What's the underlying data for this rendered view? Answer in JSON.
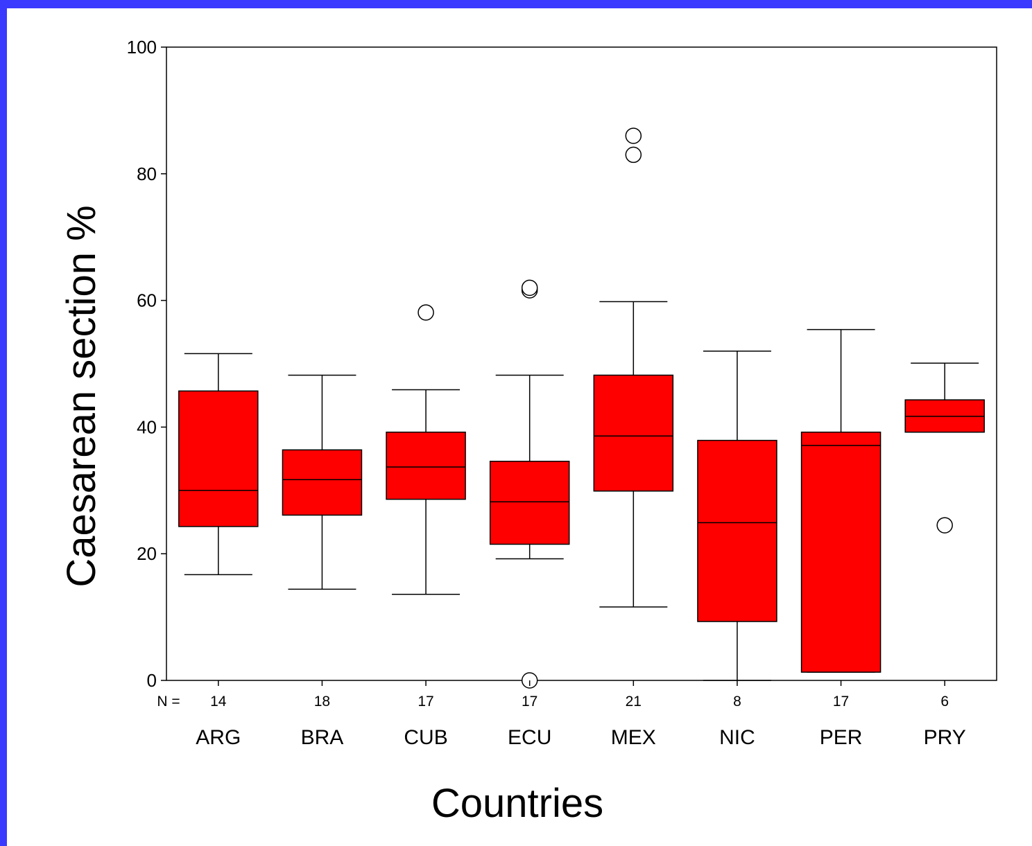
{
  "chart_data": {
    "type": "boxplot",
    "xlabel": "Countries",
    "ylabel": "Caesarean  section %",
    "ylim": [
      0,
      100
    ],
    "yticks": [
      0,
      20,
      40,
      60,
      80,
      100
    ],
    "n_label": "N =",
    "colors": {
      "box_fill": "#ff0000",
      "border": "#3a3aff"
    },
    "series": [
      {
        "category": "ARG",
        "n": "14",
        "min": 16.7,
        "q1": 24.3,
        "median": 30.0,
        "q3": 45.7,
        "max": 51.6,
        "outliers": []
      },
      {
        "category": "BRA",
        "n": "18",
        "min": 14.4,
        "q1": 26.1,
        "median": 31.7,
        "q3": 36.4,
        "max": 48.2,
        "outliers": []
      },
      {
        "category": "CUB",
        "n": "17",
        "min": 13.6,
        "q1": 28.6,
        "median": 33.7,
        "q3": 39.2,
        "max": 45.9,
        "outliers": [
          58.1
        ]
      },
      {
        "category": "ECU",
        "n": "17",
        "min": 19.2,
        "q1": 21.5,
        "median": 28.2,
        "q3": 34.6,
        "max": 48.2,
        "outliers": [
          61.6,
          62.0,
          0
        ]
      },
      {
        "category": "MEX",
        "n": "21",
        "min": 11.6,
        "q1": 29.9,
        "median": 38.6,
        "q3": 48.2,
        "max": 59.8,
        "outliers": [
          83.0,
          86.0
        ]
      },
      {
        "category": "NIC",
        "n": "8",
        "min": 0,
        "q1": 9.3,
        "median": 24.9,
        "q3": 37.9,
        "max": 52.0,
        "outliers": []
      },
      {
        "category": "PER",
        "n": "17",
        "min": 1.3,
        "q1": 1.3,
        "median": 37.1,
        "q3": 39.2,
        "max": 55.4,
        "outliers": []
      },
      {
        "category": "PRY",
        "n": "6",
        "min": 39.2,
        "q1": 39.2,
        "median": 41.7,
        "q3": 44.3,
        "max": 50.1,
        "outliers": [
          24.5
        ]
      }
    ]
  }
}
